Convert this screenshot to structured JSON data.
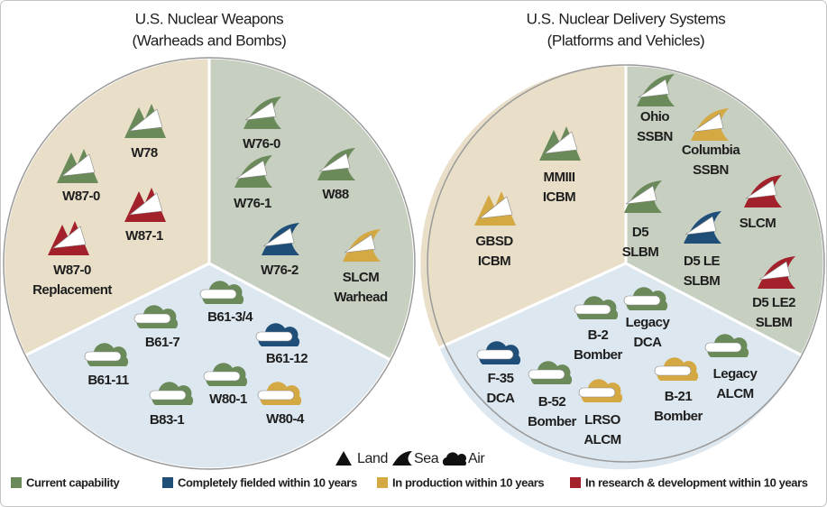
{
  "left": {
    "title": [
      "U.S. Nuclear Weapons",
      "(Warheads and Bombs)"
    ],
    "items": [
      {
        "label": [
          "W78"
        ],
        "color": "#6b8a5a"
      },
      {
        "label": [
          "W87-0"
        ],
        "color": "#6b8a5a"
      },
      {
        "label": [
          "W87-1"
        ],
        "color": "#a3212a"
      },
      {
        "label": [
          "W87-0",
          "Replacement"
        ],
        "color": "#a3212a"
      },
      {
        "label": [
          "W76-0"
        ],
        "color": "#6b8a5a"
      },
      {
        "label": [
          "W76-1"
        ],
        "color": "#6b8a5a"
      },
      {
        "label": [
          "W88"
        ],
        "color": "#6b8a5a"
      },
      {
        "label": [
          "W76-2"
        ],
        "color": "#1f4e79"
      },
      {
        "label": [
          "SLCM",
          "Warhead"
        ],
        "color": "#d4a843"
      },
      {
        "label": [
          "B61-3/4"
        ],
        "color": "#6b8a5a"
      },
      {
        "label": [
          "B61-7"
        ],
        "color": "#6b8a5a"
      },
      {
        "label": [
          "B61-12"
        ],
        "color": "#1f4e79"
      },
      {
        "label": [
          "B61-11"
        ],
        "color": "#6b8a5a"
      },
      {
        "label": [
          "B83-1"
        ],
        "color": "#6b8a5a"
      },
      {
        "label": [
          "W80-1"
        ],
        "color": "#6b8a5a"
      },
      {
        "label": [
          "W80-4"
        ],
        "color": "#d4a843"
      }
    ]
  },
  "right": {
    "title": [
      "U.S. Nuclear Delivery Systems",
      "(Platforms and Vehicles)"
    ],
    "items": [
      {
        "label": [
          "MMIII",
          "ICBM"
        ],
        "color": "#6b8a5a"
      },
      {
        "label": [
          "GBSD",
          "ICBM"
        ],
        "color": "#d4a843"
      },
      {
        "label": [
          "Ohio",
          "SSBN"
        ],
        "color": "#6b8a5a"
      },
      {
        "label": [
          "Columbia",
          "SSBN"
        ],
        "color": "#d4a843"
      },
      {
        "label": [
          "D5",
          "SLBM"
        ],
        "color": "#6b8a5a"
      },
      {
        "label": [
          "D5 LE",
          "SLBM"
        ],
        "color": "#1f4e79"
      },
      {
        "label": [
          "SLCM"
        ],
        "color": "#a3212a"
      },
      {
        "label": [
          "D5 LE2",
          "SLBM"
        ],
        "color": "#a3212a"
      },
      {
        "label": [
          "B-2",
          "Bomber"
        ],
        "color": "#6b8a5a"
      },
      {
        "label": [
          "Legacy",
          "DCA"
        ],
        "color": "#6b8a5a"
      },
      {
        "label": [
          "F-35",
          "DCA"
        ],
        "color": "#1f4e79"
      },
      {
        "label": [
          "B-52",
          "Bomber"
        ],
        "color": "#6b8a5a"
      },
      {
        "label": [
          "LRSO",
          "ALCM"
        ],
        "color": "#d4a843"
      },
      {
        "label": [
          "B-21",
          "Bomber"
        ],
        "color": "#d4a843"
      },
      {
        "label": [
          "Legacy",
          "ALCM"
        ],
        "color": "#6b8a5a"
      }
    ]
  },
  "legend": {
    "key": [
      "Land",
      "Sea",
      "Air"
    ],
    "status": [
      {
        "label": "Current capability",
        "color": "#6b8a5a"
      },
      {
        "label": "Completely fielded within 10 years",
        "color": "#1f4e79"
      },
      {
        "label": "In production within 10 years",
        "color": "#d4a843"
      },
      {
        "label": "In research & development within 10 years",
        "color": "#a3212a"
      }
    ]
  }
}
